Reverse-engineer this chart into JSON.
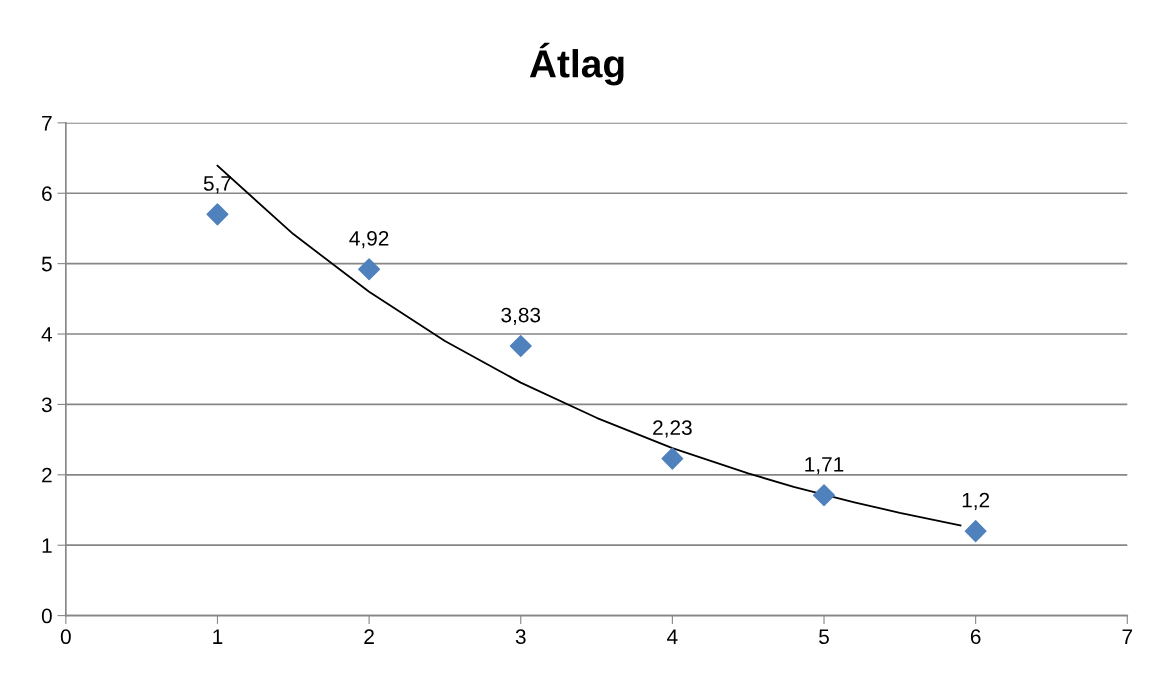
{
  "chart_data": {
    "type": "scatter",
    "title": "Átlag",
    "series": [
      {
        "color": "#4f81bd",
        "marker": "diamond",
        "x": [
          1,
          2,
          3,
          4,
          5,
          6
        ],
        "values": [
          5.7,
          4.92,
          3.83,
          2.23,
          1.71,
          1.2
        ],
        "value_labels": [
          "5,7",
          "4,92",
          "3,83",
          "2,23",
          "1,71",
          "1,2"
        ]
      },
      {
        "type": "line",
        "color": "#000000",
        "marker": "none",
        "line_style": "solid",
        "x": [
          1,
          1.5,
          2,
          2.5,
          3,
          3.5,
          4,
          4.5,
          4.8,
          5.2,
          5.5,
          5.9
        ],
        "values": [
          6.39,
          5.42,
          4.6,
          3.9,
          3.31,
          2.81,
          2.38,
          2.02,
          1.83,
          1.61,
          1.46,
          1.28
        ]
      }
    ],
    "xlim": [
      0,
      7
    ],
    "xticks": [
      0,
      1,
      2,
      3,
      4,
      5,
      6,
      7
    ],
    "ylim": [
      0,
      7
    ],
    "yticks": [
      0,
      1,
      2,
      3,
      4,
      5,
      6,
      7
    ],
    "grid": "y",
    "legend": false
  }
}
